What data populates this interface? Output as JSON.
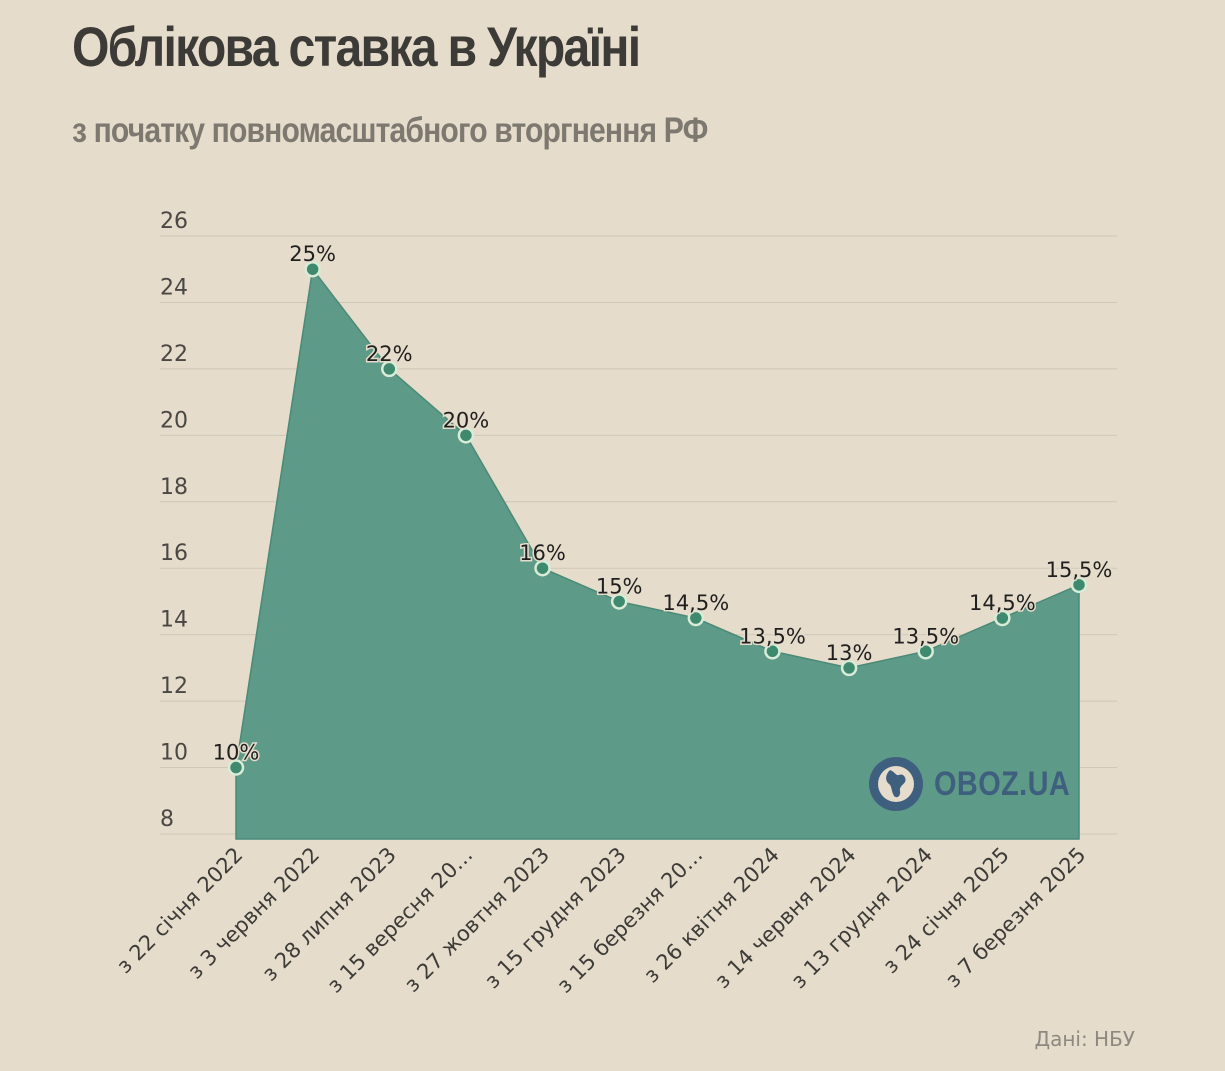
{
  "header": {
    "title": "Облікова ставка в Україні",
    "subtitle": "з початку повномасштабного вторгнення РФ"
  },
  "source": "Дані: НБУ",
  "watermark": {
    "text": "OBOZ.UA",
    "icon": "globe-icon"
  },
  "colors": {
    "background": "#e5dccb",
    "area": "#5e9a88",
    "area_edge": "#4a8a77",
    "marker_fill": "#3f8a6f",
    "marker_stroke": "#d8ecd8",
    "grid": "#cfc7b7",
    "logo": "#3f5f7e"
  },
  "chart_data": {
    "type": "area",
    "categories": [
      "з 22 січня 2022",
      "з 3 червня 2022",
      "з 28 липня 2023",
      "з 15 вересня 20…",
      "з 27 жовтня 2023",
      "з 15 грудня 2023",
      "з 15 березня 20…",
      "з 26 квітня 2024",
      "з 14 червня 2024",
      "з 13 грудня 2024",
      "з 24 січня 2025",
      "з 7 березня 2025"
    ],
    "values": [
      10,
      25,
      22,
      20,
      16,
      15,
      14.5,
      13.5,
      13,
      13.5,
      14.5,
      15.5
    ],
    "data_labels": [
      "10%",
      "25%",
      "22%",
      "20%",
      "16%",
      "15%",
      "14,5%",
      "13,5%",
      "13%",
      "13,5%",
      "14,5%",
      "15,5%"
    ],
    "yticks": [
      8,
      10,
      12,
      14,
      16,
      18,
      20,
      22,
      24,
      26
    ],
    "ylim": [
      7.8,
      26.5
    ],
    "title": "Облікова ставка в Україні",
    "xlabel": "",
    "ylabel": "",
    "grid": true,
    "legend": "none"
  }
}
